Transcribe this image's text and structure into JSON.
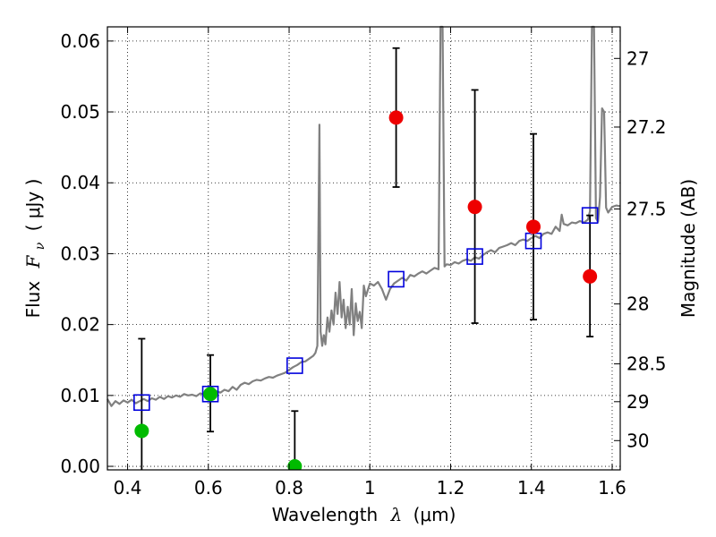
{
  "chart_data": {
    "type": "scatter",
    "title": "",
    "xlabel": {
      "prefix": "Wavelength",
      "symbol": "λ",
      "unit": "(μm)"
    },
    "ylabel": {
      "prefix": "Flux",
      "symbol": "F",
      "subscript": "ν",
      "unit": "( μJy )"
    },
    "ylabel_right": "Magnitude (AB)",
    "xlim": [
      0.35,
      1.62
    ],
    "ylim": [
      -0.0005,
      0.062
    ],
    "grid": true,
    "x_ticks": [
      {
        "value": 0.4,
        "label": "0.4"
      },
      {
        "value": 0.6,
        "label": "0.6"
      },
      {
        "value": 0.8,
        "label": "0.8"
      },
      {
        "value": 1.0,
        "label": "1"
      },
      {
        "value": 1.2,
        "label": "1.2"
      },
      {
        "value": 1.4,
        "label": "1.4"
      },
      {
        "value": 1.6,
        "label": "1.6"
      }
    ],
    "y_ticks": [
      {
        "value": 0.0,
        "label": "0.00"
      },
      {
        "value": 0.01,
        "label": "0.01"
      },
      {
        "value": 0.02,
        "label": "0.02"
      },
      {
        "value": 0.03,
        "label": "0.03"
      },
      {
        "value": 0.04,
        "label": "0.04"
      },
      {
        "value": 0.05,
        "label": "0.05"
      },
      {
        "value": 0.06,
        "label": "0.06"
      }
    ],
    "mag_ticks": [
      {
        "mag": 27,
        "label": "27"
      },
      {
        "mag": 27.2,
        "label": "27.2"
      },
      {
        "mag": 27.5,
        "label": "27.5"
      },
      {
        "mag": 28,
        "label": "28"
      },
      {
        "mag": 28.5,
        "label": "28.5"
      },
      {
        "mag": 29,
        "label": "29"
      },
      {
        "mag": 30,
        "label": "30"
      }
    ],
    "model_spectrum": {
      "color": "#808080",
      "points": [
        [
          0.35,
          0.0095
        ],
        [
          0.36,
          0.0085
        ],
        [
          0.37,
          0.0092
        ],
        [
          0.38,
          0.0088
        ],
        [
          0.39,
          0.0093
        ],
        [
          0.4,
          0.009
        ],
        [
          0.41,
          0.0094
        ],
        [
          0.42,
          0.0089
        ],
        [
          0.43,
          0.0092
        ],
        [
          0.44,
          0.0095
        ],
        [
          0.45,
          0.0092
        ],
        [
          0.46,
          0.0096
        ],
        [
          0.47,
          0.0094
        ],
        [
          0.48,
          0.0098
        ],
        [
          0.49,
          0.0095
        ],
        [
          0.5,
          0.0099
        ],
        [
          0.51,
          0.0097
        ],
        [
          0.52,
          0.01
        ],
        [
          0.53,
          0.0098
        ],
        [
          0.54,
          0.0102
        ],
        [
          0.55,
          0.01
        ],
        [
          0.56,
          0.0101
        ],
        [
          0.57,
          0.0099
        ],
        [
          0.58,
          0.0103
        ],
        [
          0.59,
          0.0101
        ],
        [
          0.6,
          0.0104
        ],
        [
          0.61,
          0.0103
        ],
        [
          0.62,
          0.0106
        ],
        [
          0.63,
          0.0104
        ],
        [
          0.64,
          0.0108
        ],
        [
          0.65,
          0.0106
        ],
        [
          0.66,
          0.0112
        ],
        [
          0.67,
          0.0108
        ],
        [
          0.68,
          0.0115
        ],
        [
          0.69,
          0.0118
        ],
        [
          0.7,
          0.0116
        ],
        [
          0.71,
          0.012
        ],
        [
          0.72,
          0.0122
        ],
        [
          0.73,
          0.0121
        ],
        [
          0.74,
          0.0124
        ],
        [
          0.75,
          0.0126
        ],
        [
          0.76,
          0.0125
        ],
        [
          0.77,
          0.0128
        ],
        [
          0.78,
          0.013
        ],
        [
          0.79,
          0.0132
        ],
        [
          0.8,
          0.0136
        ],
        [
          0.81,
          0.014
        ],
        [
          0.82,
          0.0143
        ],
        [
          0.83,
          0.0147
        ],
        [
          0.84,
          0.0148
        ],
        [
          0.85,
          0.0152
        ],
        [
          0.86,
          0.0156
        ],
        [
          0.865,
          0.016
        ],
        [
          0.87,
          0.017
        ],
        [
          0.875,
          0.0482
        ],
        [
          0.878,
          0.019
        ],
        [
          0.882,
          0.017
        ],
        [
          0.886,
          0.0185
        ],
        [
          0.89,
          0.0172
        ],
        [
          0.895,
          0.021
        ],
        [
          0.9,
          0.019
        ],
        [
          0.905,
          0.022
        ],
        [
          0.91,
          0.02
        ],
        [
          0.915,
          0.0245
        ],
        [
          0.92,
          0.0215
        ],
        [
          0.925,
          0.026
        ],
        [
          0.93,
          0.021
        ],
        [
          0.935,
          0.0235
        ],
        [
          0.94,
          0.0195
        ],
        [
          0.945,
          0.0225
        ],
        [
          0.95,
          0.02
        ],
        [
          0.955,
          0.025
        ],
        [
          0.96,
          0.0185
        ],
        [
          0.965,
          0.023
        ],
        [
          0.97,
          0.0205
        ],
        [
          0.975,
          0.0218
        ],
        [
          0.98,
          0.0195
        ],
        [
          0.985,
          0.0255
        ],
        [
          0.99,
          0.024
        ],
        [
          1.0,
          0.0258
        ],
        [
          1.01,
          0.0255
        ],
        [
          1.02,
          0.026
        ],
        [
          1.03,
          0.025
        ],
        [
          1.04,
          0.0235
        ],
        [
          1.05,
          0.025
        ],
        [
          1.06,
          0.0258
        ],
        [
          1.07,
          0.0262
        ],
        [
          1.08,
          0.0266
        ],
        [
          1.09,
          0.0262
        ],
        [
          1.1,
          0.027
        ],
        [
          1.11,
          0.0268
        ],
        [
          1.12,
          0.0272
        ],
        [
          1.13,
          0.0275
        ],
        [
          1.14,
          0.0272
        ],
        [
          1.15,
          0.0276
        ],
        [
          1.16,
          0.028
        ],
        [
          1.17,
          0.0278
        ],
        [
          1.175,
          0.062
        ],
        [
          1.18,
          0.062
        ],
        [
          1.185,
          0.0282
        ],
        [
          1.19,
          0.0285
        ],
        [
          1.2,
          0.0284
        ],
        [
          1.21,
          0.0288
        ],
        [
          1.22,
          0.0286
        ],
        [
          1.23,
          0.029
        ],
        [
          1.24,
          0.0292
        ],
        [
          1.25,
          0.029
        ],
        [
          1.26,
          0.0295
        ],
        [
          1.27,
          0.0293
        ],
        [
          1.28,
          0.0298
        ],
        [
          1.29,
          0.0302
        ],
        [
          1.3,
          0.0305
        ],
        [
          1.31,
          0.0302
        ],
        [
          1.32,
          0.0308
        ],
        [
          1.33,
          0.031
        ],
        [
          1.34,
          0.0312
        ],
        [
          1.35,
          0.0315
        ],
        [
          1.36,
          0.0312
        ],
        [
          1.37,
          0.0318
        ],
        [
          1.38,
          0.032
        ],
        [
          1.39,
          0.0318
        ],
        [
          1.4,
          0.0322
        ],
        [
          1.41,
          0.0325
        ],
        [
          1.42,
          0.0322
        ],
        [
          1.43,
          0.0328
        ],
        [
          1.44,
          0.033
        ],
        [
          1.45,
          0.0328
        ],
        [
          1.46,
          0.0338
        ],
        [
          1.47,
          0.0332
        ],
        [
          1.475,
          0.0355
        ],
        [
          1.48,
          0.0342
        ],
        [
          1.49,
          0.034
        ],
        [
          1.5,
          0.0344
        ],
        [
          1.51,
          0.0343
        ],
        [
          1.52,
          0.0346
        ],
        [
          1.53,
          0.0344
        ],
        [
          1.54,
          0.0348
        ],
        [
          1.545,
          0.036
        ],
        [
          1.55,
          0.062
        ],
        [
          1.555,
          0.062
        ],
        [
          1.56,
          0.035
        ],
        [
          1.565,
          0.0345
        ],
        [
          1.57,
          0.038
        ],
        [
          1.575,
          0.0505
        ],
        [
          1.58,
          0.05
        ],
        [
          1.585,
          0.0365
        ],
        [
          1.59,
          0.0358
        ],
        [
          1.6,
          0.0366
        ],
        [
          1.61,
          0.0368
        ],
        [
          1.62,
          0.0367
        ]
      ]
    },
    "model_fluxes": {
      "marker": "open-square",
      "color": "#0000dd",
      "points": [
        {
          "x": 0.435,
          "y": 0.009
        },
        {
          "x": 0.605,
          "y": 0.0102
        },
        {
          "x": 0.814,
          "y": 0.0142
        },
        {
          "x": 1.065,
          "y": 0.0264
        },
        {
          "x": 1.26,
          "y": 0.0296
        },
        {
          "x": 1.405,
          "y": 0.0318
        },
        {
          "x": 1.545,
          "y": 0.0354
        }
      ]
    },
    "observed_optical": {
      "marker": "circle",
      "color": "#00bb00",
      "points": [
        {
          "x": 0.435,
          "y": 0.005,
          "ylo": -0.001,
          "yhi": 0.018
        },
        {
          "x": 0.605,
          "y": 0.0102,
          "ylo": 0.0049,
          "yhi": 0.0157
        },
        {
          "x": 0.814,
          "y": 0.0,
          "ylo": -0.001,
          "yhi": 0.0078
        }
      ]
    },
    "observed_nir": {
      "marker": "circle",
      "color": "#ee0000",
      "points": [
        {
          "x": 1.065,
          "y": 0.0492,
          "ylo": 0.0394,
          "yhi": 0.059
        },
        {
          "x": 1.26,
          "y": 0.0366,
          "ylo": 0.0202,
          "yhi": 0.0531
        },
        {
          "x": 1.405,
          "y": 0.0338,
          "ylo": 0.0207,
          "yhi": 0.0469
        },
        {
          "x": 1.545,
          "y": 0.0268,
          "ylo": 0.0183,
          "yhi": 0.0354
        }
      ]
    }
  }
}
